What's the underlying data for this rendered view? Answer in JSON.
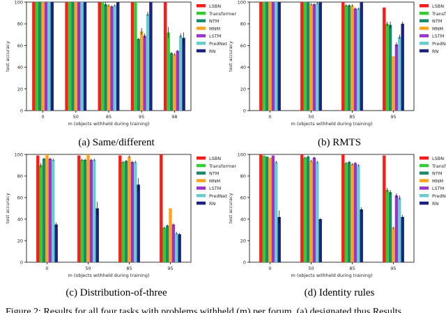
{
  "series_names": [
    "LSBN",
    "Transformer",
    "NTM",
    "MNM",
    "LSTM",
    "PredNet",
    "RN"
  ],
  "series_colors": [
    "#ff1a1a",
    "#33cc33",
    "#1a8a6a",
    "#ffa31a",
    "#9933cc",
    "#66cccc",
    "#1a237e"
  ],
  "errbar_color": "#000000",
  "footer_text": "Figure 2: Results for all four tasks with problems withheld (m) per forum. (a) designated thus Results",
  "chart_data": [
    {
      "type": "bar",
      "caption": "(a) Same/different",
      "xlabel": "m (objects withheld during training)",
      "ylabel": "test accuracy",
      "ylim": [
        0,
        100
      ],
      "yticks": [
        0,
        20,
        40,
        60,
        80,
        100
      ],
      "categories": [
        "0",
        "50",
        "85",
        "95",
        "98"
      ],
      "legend": "right",
      "series": [
        {
          "name": "LSBN",
          "values": [
            100,
            100,
            100,
            100,
            100
          ],
          "errors": [
            0,
            0,
            0,
            0,
            0
          ]
        },
        {
          "name": "Transformer",
          "values": [
            100,
            100,
            100,
            100,
            72
          ],
          "errors": [
            0,
            0,
            0,
            0,
            5
          ]
        },
        {
          "name": "NTM",
          "values": [
            100,
            100,
            98,
            66,
            53
          ],
          "errors": [
            0,
            0,
            2,
            1,
            1
          ]
        },
        {
          "name": "MNM",
          "values": [
            100,
            100,
            97,
            73,
            52
          ],
          "errors": [
            0,
            0,
            1,
            3,
            1
          ]
        },
        {
          "name": "LSTM",
          "values": [
            100,
            100,
            96,
            69,
            55
          ],
          "errors": [
            0,
            0,
            1,
            2,
            1
          ]
        },
        {
          "name": "PredNet",
          "values": [
            100,
            100,
            97,
            89,
            69
          ],
          "errors": [
            0,
            0,
            1,
            2,
            2
          ]
        },
        {
          "name": "RN",
          "values": [
            100,
            100,
            100,
            100,
            67
          ],
          "errors": [
            0,
            0,
            0,
            0,
            5
          ]
        }
      ]
    },
    {
      "type": "bar",
      "caption": "(b) RMTS",
      "xlabel": "m (objects withheld during training)",
      "ylabel": "test accuracy",
      "ylim": [
        0,
        100
      ],
      "yticks": [
        0,
        20,
        40,
        60,
        80,
        100
      ],
      "categories": [
        "0",
        "50",
        "85",
        "95"
      ],
      "legend": "right",
      "series": [
        {
          "name": "LSBN",
          "values": [
            100,
            100,
            100,
            95
          ],
          "errors": [
            0,
            0,
            0,
            0
          ]
        },
        {
          "name": "Transformer",
          "values": [
            100,
            100,
            97,
            80
          ],
          "errors": [
            0,
            0,
            1,
            2
          ]
        },
        {
          "name": "NTM",
          "values": [
            100,
            100,
            97,
            79
          ],
          "errors": [
            0,
            0,
            1,
            3
          ]
        },
        {
          "name": "MNM",
          "values": [
            100,
            98,
            97,
            50
          ],
          "errors": [
            0,
            1,
            1,
            0
          ]
        },
        {
          "name": "LSTM",
          "values": [
            100,
            98,
            94,
            61
          ],
          "errors": [
            0,
            1,
            1,
            2
          ]
        },
        {
          "name": "PredNet",
          "values": [
            100,
            99,
            94,
            68
          ],
          "errors": [
            0,
            1,
            1,
            2
          ]
        },
        {
          "name": "RN",
          "values": [
            100,
            100,
            100,
            80
          ],
          "errors": [
            0,
            0,
            0,
            2
          ]
        }
      ]
    },
    {
      "type": "bar",
      "caption": "(c) Distribution-of-three",
      "xlabel": "m (objects withheld during training)",
      "ylabel": "test accuracy",
      "ylim": [
        0,
        100
      ],
      "yticks": [
        0,
        20,
        40,
        60,
        80,
        100
      ],
      "categories": [
        "0",
        "50",
        "85",
        "95"
      ],
      "legend": "right",
      "series": [
        {
          "name": "LSBN",
          "values": [
            99,
            99,
            99,
            100
          ],
          "errors": [
            0,
            0,
            0,
            0
          ]
        },
        {
          "name": "Transformer",
          "values": [
            90,
            95,
            93,
            32
          ],
          "errors": [
            2,
            1,
            1,
            1
          ]
        },
        {
          "name": "NTM",
          "values": [
            96,
            95,
            94,
            34
          ],
          "errors": [
            1,
            1,
            1,
            1
          ]
        },
        {
          "name": "MNM",
          "values": [
            100,
            100,
            98,
            50
          ],
          "errors": [
            0,
            0,
            1,
            0
          ]
        },
        {
          "name": "LSTM",
          "values": [
            96,
            95,
            93,
            35
          ],
          "errors": [
            1,
            1,
            1,
            1
          ]
        },
        {
          "name": "PredNet",
          "values": [
            95,
            95,
            93,
            27
          ],
          "errors": [
            1,
            1,
            1,
            1
          ]
        },
        {
          "name": "RN",
          "values": [
            35,
            50,
            72,
            26
          ],
          "errors": [
            2,
            6,
            6,
            1
          ]
        }
      ]
    },
    {
      "type": "bar",
      "caption": "(d) Identity rules",
      "xlabel": "m (objects withheld during training)",
      "ylabel": "test accuracy",
      "ylim": [
        0,
        100
      ],
      "yticks": [
        0,
        20,
        40,
        60,
        80,
        100
      ],
      "categories": [
        "0",
        "50",
        "85",
        "95"
      ],
      "legend": "right",
      "series": [
        {
          "name": "LSBN",
          "values": [
            100,
            100,
            100,
            99
          ],
          "errors": [
            0,
            0,
            0,
            0
          ]
        },
        {
          "name": "Transformer",
          "values": [
            99,
            97,
            92,
            67
          ],
          "errors": [
            0,
            1,
            1,
            2
          ]
        },
        {
          "name": "NTM",
          "values": [
            98,
            98,
            93,
            65
          ],
          "errors": [
            0,
            1,
            1,
            2
          ]
        },
        {
          "name": "MNM",
          "values": [
            97,
            94,
            91,
            32
          ],
          "errors": [
            0,
            1,
            1,
            1
          ]
        },
        {
          "name": "LSTM",
          "values": [
            99,
            97,
            92,
            62
          ],
          "errors": [
            0,
            1,
            1,
            2
          ]
        },
        {
          "name": "PredNet",
          "values": [
            93,
            93,
            90,
            60
          ],
          "errors": [
            1,
            1,
            1,
            2
          ]
        },
        {
          "name": "RN",
          "values": [
            42,
            40,
            49,
            42
          ],
          "errors": [
            6,
            1,
            2,
            2
          ]
        }
      ]
    }
  ]
}
